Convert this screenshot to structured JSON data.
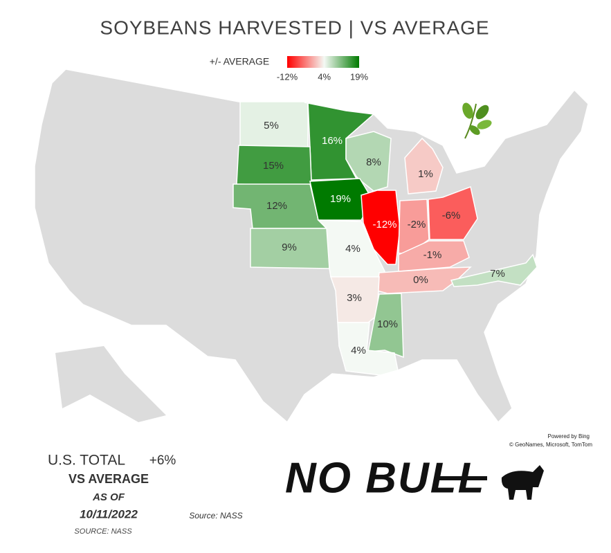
{
  "title": "SOYBEANS HARVESTED  |  VS AVERAGE",
  "legend": {
    "title": "+/- AVERAGE",
    "stops": [
      {
        "value": -12,
        "label": "-12%",
        "color": "#ff0000"
      },
      {
        "value": 4,
        "label": "4%",
        "color": "#f4f9f4"
      },
      {
        "value": 19,
        "label": "19%",
        "color": "#007a00"
      }
    ]
  },
  "regions": {
    "values": [
      5,
      16,
      15,
      8,
      1,
      12,
      19,
      -12,
      -2,
      -6,
      9,
      4,
      -1,
      0,
      7,
      3,
      10,
      4
    ],
    "value_labels": [
      "5%",
      "16%",
      "15%",
      "8%",
      "1%",
      "12%",
      "19%",
      "-12%",
      "-2%",
      "-6%",
      "9%",
      "4%",
      "-1%",
      "0%",
      "7%",
      "3%",
      "10%",
      "4%"
    ]
  },
  "attribution": {
    "line1": "Powered by Bing",
    "line2": "© GeoNames, Microsoft, TomTom"
  },
  "summary": {
    "label": "U.S. TOTAL",
    "value_label": "+6%",
    "subtitle": "VS AVERAGE",
    "as_of": "AS OF",
    "date": "10/11/2022",
    "source_small": "SOURCE: NASS"
  },
  "source": "Source: NASS",
  "logo": "NO BULL"
}
